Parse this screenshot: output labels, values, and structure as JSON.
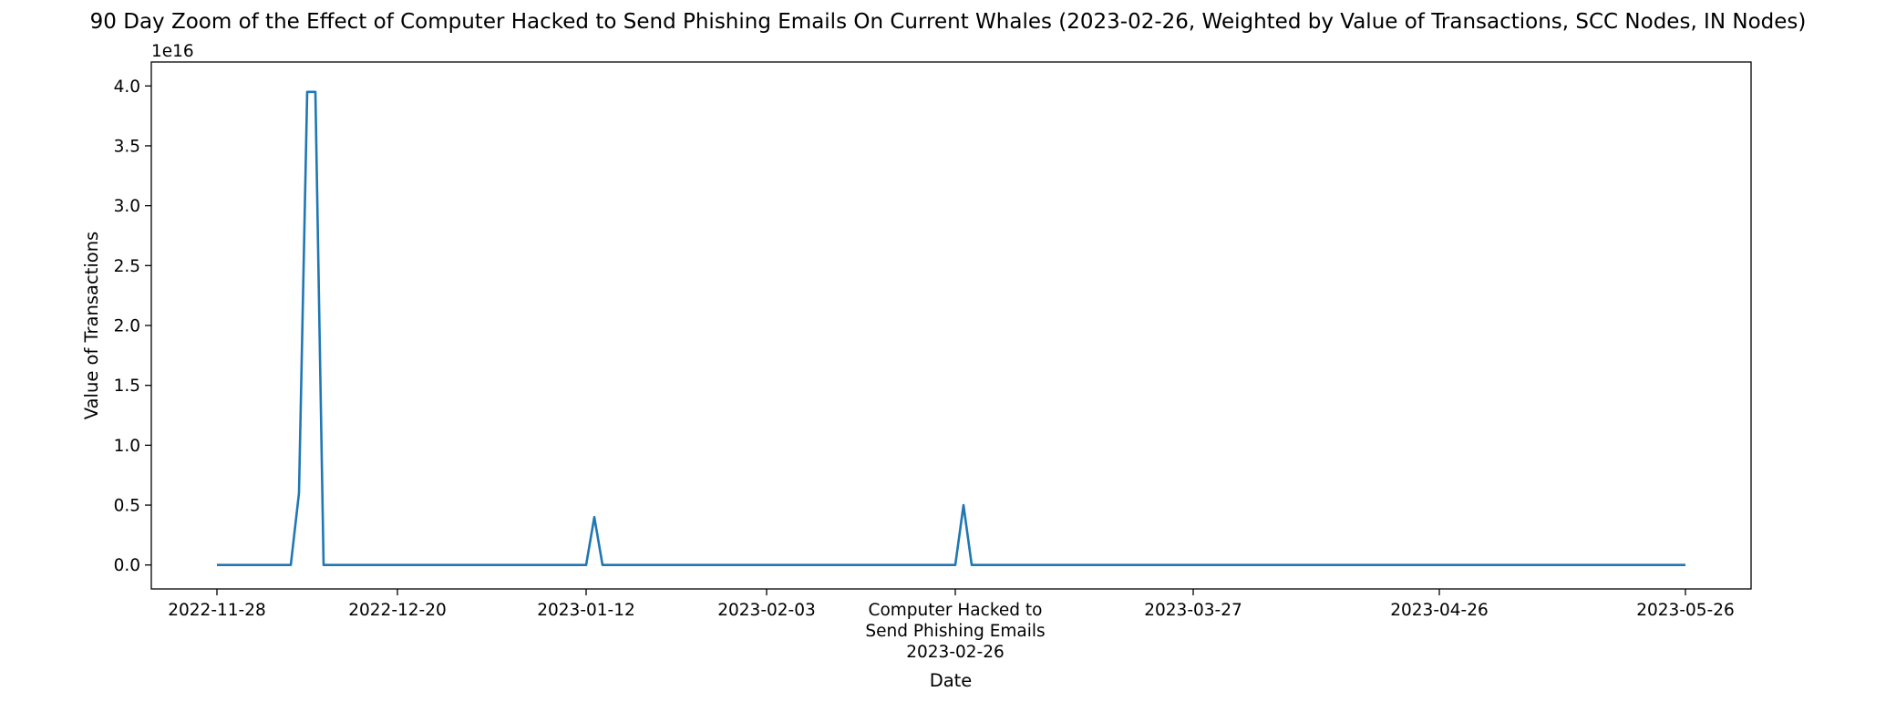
{
  "chart_data": {
    "type": "line",
    "title": "90 Day Zoom of the Effect of Computer Hacked to Send Phishing Emails On Current Whales (2023-02-26, Weighted by Value of Transactions, SCC Nodes, IN Nodes)",
    "xlabel": "Date",
    "ylabel": "Value of Transactions",
    "y_offset_label": "1e16",
    "y_scale": 1e+16,
    "xlim": [
      "2022-11-20",
      "2023-06-03"
    ],
    "ylim": [
      -2000000000000000.0,
      4.2e+16
    ],
    "grid": false,
    "line_color": "#1f77b4",
    "x_ticks": [
      "2022-11-28",
      "2022-12-20",
      "2023-01-12",
      "2023-02-03",
      "2023-02-26",
      "2023-03-27",
      "2023-04-26",
      "2023-05-26"
    ],
    "x_tick_labels": [
      [
        "2022-11-28"
      ],
      [
        "2022-12-20"
      ],
      [
        "2023-01-12"
      ],
      [
        "2023-02-03"
      ],
      [
        "Computer Hacked to",
        "Send Phishing Emails",
        "2023-02-26"
      ],
      [
        "2023-03-27"
      ],
      [
        "2023-04-26"
      ],
      [
        "2023-05-26"
      ]
    ],
    "y_ticks": [
      0.0,
      0.5,
      1.0,
      1.5,
      2.0,
      2.5,
      3.0,
      3.5,
      4.0
    ],
    "y_tick_labels": [
      "0.0",
      "0.5",
      "1.0",
      "1.5",
      "2.0",
      "2.5",
      "3.0",
      "3.5",
      "4.0"
    ],
    "series": [
      {
        "x": [
          "2022-11-28",
          "2022-12-07",
          "2022-12-08",
          "2022-12-09",
          "2022-12-10",
          "2022-12-11",
          "2022-12-12",
          "2023-01-12",
          "2023-01-13",
          "2023-01-14",
          "2023-02-26",
          "2023-02-27",
          "2023-02-28",
          "2023-05-26"
        ],
        "y": [
          0,
          0,
          6000000000000000.0,
          3.95e+16,
          3.95e+16,
          0,
          0,
          0,
          4000000000000000.0,
          0,
          0,
          5000000000000000.0,
          0,
          0
        ]
      }
    ]
  }
}
